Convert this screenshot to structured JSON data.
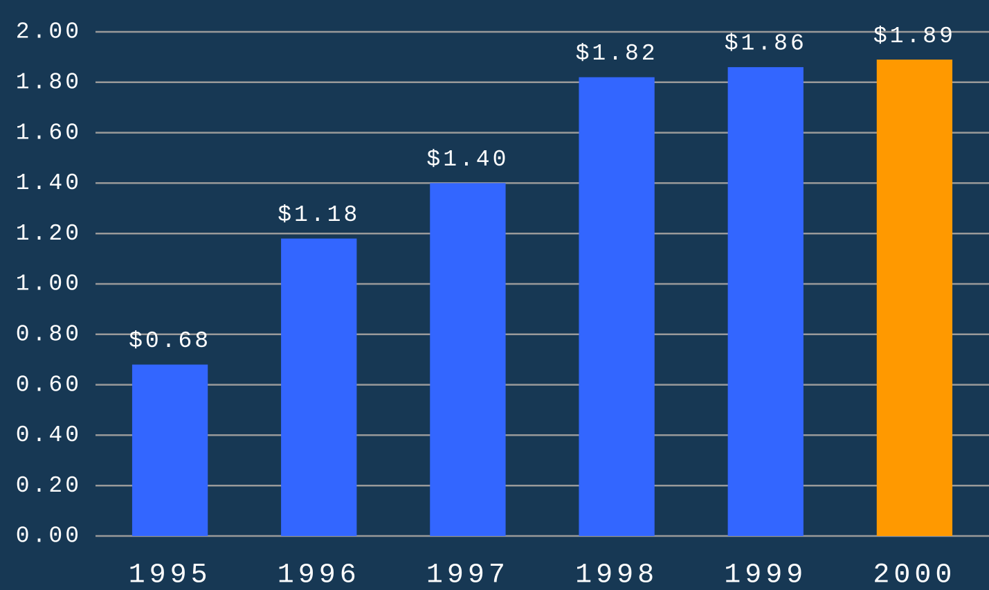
{
  "chart_data": {
    "type": "bar",
    "categories": [
      "1995",
      "1996",
      "1997",
      "1998",
      "1999",
      "2000"
    ],
    "values": [
      0.68,
      1.18,
      1.4,
      1.82,
      1.86,
      1.89
    ],
    "value_labels": [
      "$0.68",
      "$1.18",
      "$1.40",
      "$1.82",
      "$1.86",
      "$1.89"
    ],
    "colors": [
      "#3366ff",
      "#3366ff",
      "#3366ff",
      "#3366ff",
      "#3366ff",
      "#ff9900"
    ],
    "ylim": [
      0,
      2
    ],
    "yticks": [
      {
        "value": 0,
        "label": "0.00"
      },
      {
        "value": 0.2,
        "label": "0.20"
      },
      {
        "value": 0.4,
        "label": "0.40"
      },
      {
        "value": 0.6,
        "label": "0.60"
      },
      {
        "value": 0.8,
        "label": "0.80"
      },
      {
        "value": 1,
        "label": "1.00"
      },
      {
        "value": 1.2,
        "label": "1.20"
      },
      {
        "value": 1.4,
        "label": "1.40"
      },
      {
        "value": 1.6,
        "label": "1.60"
      },
      {
        "value": 1.8,
        "label": "1.80"
      },
      {
        "value": 2,
        "label": "2.00"
      }
    ],
    "grid": true
  }
}
